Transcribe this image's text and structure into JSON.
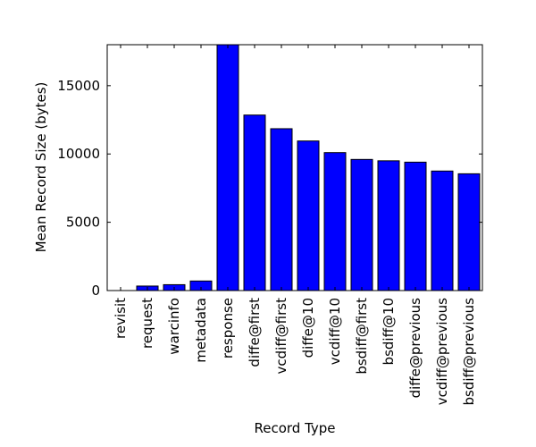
{
  "chart_data": {
    "type": "bar",
    "title": "",
    "xlabel": "Record Type",
    "ylabel": "Mean Record Size (bytes)",
    "categories": [
      "revisit",
      "request",
      "warcinfo",
      "metadata",
      "response",
      "diffe@first",
      "vcdiff@first",
      "diffe@10",
      "vcdiff@10",
      "bsdiff@first",
      "bsdiff@10",
      "diffe@previous",
      "vcdiff@previous",
      "bsdiff@previous"
    ],
    "values": [
      0,
      330,
      430,
      700,
      18000,
      12850,
      11850,
      10950,
      10100,
      9600,
      9500,
      9400,
      8750,
      8550
    ],
    "ylim": [
      0,
      18000
    ],
    "yticks": [
      0,
      5000,
      10000,
      15000
    ],
    "ytick_labels": [
      "0",
      "5000",
      "10000",
      "15000"
    ],
    "grid": false,
    "colors": {
      "bar": "#0000ff",
      "edge": "#000000",
      "axes": "#000000",
      "background": "#ffffff"
    }
  }
}
